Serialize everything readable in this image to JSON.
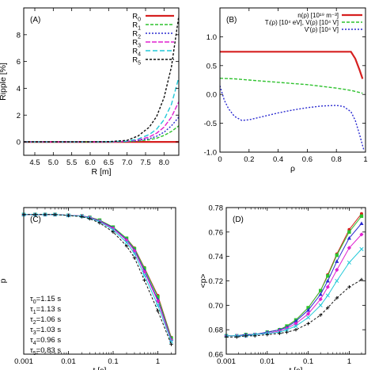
{
  "chart_data": [
    {
      "id": "A",
      "type": "line",
      "panel_label": "(A)",
      "xlabel": "R [m]",
      "ylabel": "Ripple [%]",
      "xlim": [
        4.2,
        8.4
      ],
      "ylim": [
        -1,
        10
      ],
      "xticks": [
        4.5,
        5.0,
        5.5,
        6.0,
        6.5,
        7.0,
        7.5,
        8.0
      ],
      "xtick_labels": [
        "4.5",
        "5.0",
        "5.5",
        "6.0",
        "6.5",
        "7.0",
        "7.5",
        "8.0"
      ],
      "yticks": [
        0,
        2,
        4,
        6,
        8
      ],
      "ytick_labels": [
        "0",
        "2",
        "4",
        "6",
        "8"
      ],
      "legend_position": "top-right",
      "series": [
        {
          "name": "R0",
          "label_main": "R",
          "label_sub": "0",
          "color": "#d62020",
          "dash": "",
          "width": 2.2,
          "x": [
            4.2,
            5.0,
            6.0,
            7.0,
            7.5,
            8.0,
            8.4
          ],
          "y": [
            0,
            0,
            0,
            0,
            0,
            0,
            0
          ]
        },
        {
          "name": "R1",
          "label_main": "R",
          "label_sub": "1",
          "color": "#2fc22f",
          "dash": "4,2",
          "width": 1.4,
          "x": [
            4.2,
            5.0,
            6.0,
            6.5,
            7.0,
            7.3,
            7.6,
            7.8,
            8.0,
            8.2,
            8.4
          ],
          "y": [
            0,
            0,
            0,
            0,
            0.02,
            0.07,
            0.16,
            0.28,
            0.48,
            0.78,
            1.2
          ]
        },
        {
          "name": "R2",
          "label_main": "R",
          "label_sub": "2",
          "color": "#2a2ad0",
          "dash": "2,2",
          "width": 1.4,
          "x": [
            4.2,
            5.0,
            6.0,
            6.5,
            7.0,
            7.3,
            7.6,
            7.8,
            8.0,
            8.2,
            8.4
          ],
          "y": [
            0,
            0,
            0,
            0,
            0.03,
            0.1,
            0.24,
            0.42,
            0.72,
            1.2,
            1.85
          ]
        },
        {
          "name": "R3",
          "label_main": "R",
          "label_sub": "3",
          "color": "#e020d0",
          "dash": "6,2",
          "width": 1.4,
          "x": [
            4.2,
            5.0,
            6.0,
            6.5,
            7.0,
            7.3,
            7.6,
            7.8,
            8.0,
            8.2,
            8.4
          ],
          "y": [
            0,
            0,
            0,
            0,
            0.04,
            0.15,
            0.37,
            0.65,
            1.1,
            1.85,
            3.0
          ]
        },
        {
          "name": "R4",
          "label_main": "R",
          "label_sub": "4",
          "color": "#20c8d8",
          "dash": "6,3",
          "width": 1.4,
          "x": [
            4.2,
            5.0,
            6.0,
            6.5,
            7.0,
            7.3,
            7.6,
            7.8,
            8.0,
            8.2,
            8.4
          ],
          "y": [
            0,
            0,
            0,
            0.01,
            0.06,
            0.22,
            0.55,
            0.95,
            1.65,
            2.8,
            4.8
          ]
        },
        {
          "name": "R5",
          "label_main": "R",
          "label_sub": "5",
          "color": "#111111",
          "dash": "3,2",
          "width": 1.4,
          "x": [
            4.2,
            5.0,
            6.0,
            6.5,
            7.0,
            7.3,
            7.6,
            7.8,
            8.0,
            8.2,
            8.4
          ],
          "y": [
            0,
            0,
            0,
            0.02,
            0.12,
            0.45,
            1.1,
            1.9,
            3.3,
            5.6,
            9.4
          ]
        }
      ]
    },
    {
      "id": "B",
      "type": "line",
      "panel_label": "(B)",
      "xlabel": "ρ",
      "ylabel": "",
      "xlim": [
        0,
        1
      ],
      "ylim": [
        -1,
        1.5
      ],
      "xticks": [
        0,
        0.2,
        0.4,
        0.6,
        0.8,
        1
      ],
      "xtick_labels": [
        "0",
        "0.2",
        "0.4",
        "0.6",
        "0.8",
        "1"
      ],
      "yticks": [
        -1.0,
        -0.5,
        0.0,
        0.5,
        1.0
      ],
      "ytick_labels": [
        "-1.0",
        "-0.5",
        "0.0",
        "0.5",
        "1.0"
      ],
      "legend_position": "top-right",
      "series": [
        {
          "name": "n(ρ) [10^19 m^-3]",
          "label": "n(ρ) [10¹⁹ m⁻³]",
          "color": "#d62020",
          "dash": "",
          "width": 2.2,
          "x": [
            0,
            0.2,
            0.4,
            0.6,
            0.8,
            0.9,
            0.93,
            0.96,
            0.98
          ],
          "y": [
            0.74,
            0.74,
            0.74,
            0.74,
            0.74,
            0.74,
            0.62,
            0.42,
            0.27
          ]
        },
        {
          "name": "Ti(ρ) [10^4 eV], Ve(ρ) [10^4 V]",
          "label": "Tᵢ(ρ) [10⁴ eV], V(ρ) [10⁴ V]",
          "color": "#2fc22f",
          "dash": "4,2",
          "width": 1.4,
          "x": [
            0,
            0.1,
            0.2,
            0.3,
            0.4,
            0.5,
            0.6,
            0.7,
            0.8,
            0.9,
            0.95,
            0.98
          ],
          "y": [
            0.28,
            0.27,
            0.25,
            0.23,
            0.21,
            0.19,
            0.17,
            0.14,
            0.11,
            0.07,
            0.04,
            0.02
          ]
        },
        {
          "name": "V'(ρ) [10^4 V]",
          "label": "V'(ρ) [10⁴ V]",
          "color": "#2a2ad0",
          "dash": "2,2",
          "width": 1.4,
          "x": [
            0,
            0.03,
            0.06,
            0.1,
            0.15,
            0.2,
            0.3,
            0.4,
            0.5,
            0.6,
            0.7,
            0.8,
            0.85,
            0.9,
            0.93,
            0.96,
            0.99
          ],
          "y": [
            0.15,
            -0.1,
            -0.25,
            -0.38,
            -0.45,
            -0.44,
            -0.38,
            -0.32,
            -0.27,
            -0.23,
            -0.2,
            -0.19,
            -0.21,
            -0.3,
            -0.45,
            -0.7,
            -0.98
          ]
        }
      ]
    },
    {
      "id": "C",
      "type": "line",
      "panel_label": "(C)",
      "xlabel": "t [s]",
      "ylabel": "p",
      "xscale": "log",
      "xlim": [
        0.001,
        2.5
      ],
      "ylim": [
        0.0,
        1.05
      ],
      "xticks": [
        0.001,
        0.01,
        0.1,
        1
      ],
      "xtick_labels": [
        "0.001",
        "0.01",
        "0.1",
        "1"
      ],
      "yticks": [],
      "ytick_labels": [],
      "annotations": [
        {
          "main": "τ",
          "sub": "0",
          "rest": "=1.15 s"
        },
        {
          "main": "τ",
          "sub": "1",
          "rest": "=1.13 s"
        },
        {
          "main": "τ",
          "sub": "2",
          "rest": "=1.06 s"
        },
        {
          "main": "τ",
          "sub": "3",
          "rest": "=1.03 s"
        },
        {
          "main": "τ",
          "sub": "4",
          "rest": "=0.96 s"
        },
        {
          "main": "τ",
          "sub": "5",
          "rest": "=0.83 s"
        }
      ],
      "x": [
        0.001,
        0.0018,
        0.003,
        0.005,
        0.01,
        0.02,
        0.03,
        0.05,
        0.1,
        0.2,
        0.3,
        0.5,
        1.0,
        2.0
      ],
      "series": [
        {
          "name": "τ0",
          "color": "#d62020",
          "y": [
            1.0,
            1.0,
            1.0,
            1.0,
            0.995,
            0.99,
            0.98,
            0.96,
            0.91,
            0.83,
            0.76,
            0.62,
            0.42,
            0.12
          ]
        },
        {
          "name": "τ1",
          "color": "#2fc22f",
          "y": [
            1.0,
            1.0,
            1.0,
            1.0,
            0.995,
            0.99,
            0.98,
            0.96,
            0.91,
            0.83,
            0.755,
            0.615,
            0.41,
            0.115
          ]
        },
        {
          "name": "τ2",
          "color": "#2a2ad0",
          "y": [
            1.0,
            1.0,
            1.0,
            1.0,
            0.995,
            0.99,
            0.98,
            0.955,
            0.905,
            0.82,
            0.745,
            0.6,
            0.39,
            0.105
          ]
        },
        {
          "name": "τ3",
          "color": "#e020d0",
          "y": [
            1.0,
            1.0,
            1.0,
            1.0,
            0.995,
            0.99,
            0.978,
            0.953,
            0.9,
            0.815,
            0.74,
            0.59,
            0.38,
            0.1
          ]
        },
        {
          "name": "τ4",
          "color": "#20c8d8",
          "y": [
            1.0,
            1.0,
            1.0,
            1.0,
            0.994,
            0.988,
            0.975,
            0.948,
            0.89,
            0.8,
            0.72,
            0.565,
            0.35,
            0.09
          ]
        },
        {
          "name": "τ5",
          "color": "#111111",
          "y": [
            1.0,
            1.0,
            1.0,
            1.0,
            0.993,
            0.985,
            0.97,
            0.94,
            0.875,
            0.775,
            0.69,
            0.53,
            0.31,
            0.07
          ]
        }
      ]
    },
    {
      "id": "D",
      "type": "line",
      "panel_label": "(D)",
      "xlabel": "t [s]",
      "ylabel": "<p>",
      "xscale": "log",
      "xlim": [
        0.001,
        2.5
      ],
      "ylim": [
        0.66,
        0.78
      ],
      "xticks": [
        0.001,
        0.01,
        0.1,
        1
      ],
      "xtick_labels": [
        "0.001",
        "0.01",
        "0.1",
        "1"
      ],
      "yticks": [
        0.66,
        0.68,
        0.7,
        0.72,
        0.74,
        0.76,
        0.78
      ],
      "ytick_labels": [
        "0.66",
        "0.68",
        "0.70",
        "0.72",
        "0.74",
        "0.76",
        "0.78"
      ],
      "x": [
        0.001,
        0.0018,
        0.003,
        0.005,
        0.01,
        0.02,
        0.03,
        0.05,
        0.1,
        0.2,
        0.3,
        0.5,
        1.0,
        2.0
      ],
      "series": [
        {
          "name": "τ0",
          "color": "#d62020",
          "y": [
            0.675,
            0.675,
            0.676,
            0.676,
            0.678,
            0.68,
            0.683,
            0.688,
            0.698,
            0.712,
            0.725,
            0.742,
            0.762,
            0.775
          ]
        },
        {
          "name": "τ1",
          "color": "#2fc22f",
          "y": [
            0.675,
            0.675,
            0.676,
            0.676,
            0.678,
            0.68,
            0.683,
            0.688,
            0.698,
            0.712,
            0.724,
            0.741,
            0.76,
            0.773
          ]
        },
        {
          "name": "τ2",
          "color": "#2a2ad0",
          "y": [
            0.675,
            0.675,
            0.676,
            0.676,
            0.678,
            0.68,
            0.682,
            0.687,
            0.696,
            0.709,
            0.72,
            0.736,
            0.755,
            0.767
          ]
        },
        {
          "name": "τ3",
          "color": "#e020d0",
          "y": [
            0.675,
            0.675,
            0.675,
            0.676,
            0.677,
            0.679,
            0.681,
            0.685,
            0.693,
            0.705,
            0.715,
            0.729,
            0.747,
            0.758
          ]
        },
        {
          "name": "τ4",
          "color": "#20c8d8",
          "y": [
            0.675,
            0.675,
            0.675,
            0.676,
            0.677,
            0.678,
            0.68,
            0.683,
            0.69,
            0.7,
            0.708,
            0.72,
            0.735,
            0.746
          ]
        },
        {
          "name": "τ5",
          "color": "#111111",
          "y": [
            0.674,
            0.674,
            0.675,
            0.675,
            0.676,
            0.677,
            0.678,
            0.68,
            0.685,
            0.692,
            0.698,
            0.706,
            0.715,
            0.721
          ]
        }
      ]
    }
  ]
}
